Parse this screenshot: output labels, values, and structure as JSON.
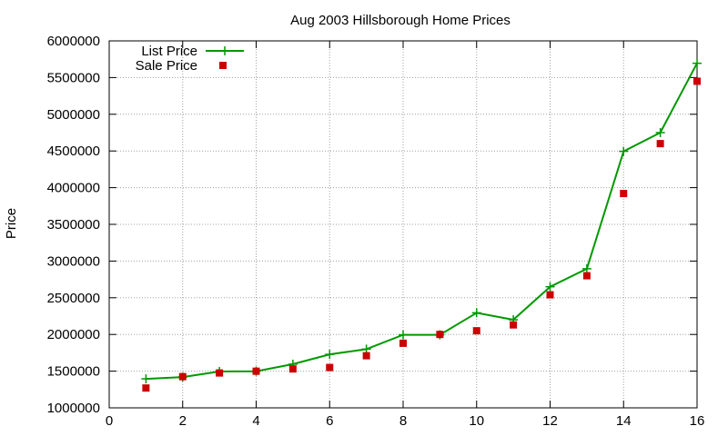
{
  "chart_data": {
    "type": "line",
    "title": "Aug 2003 Hillsborough Home Prices",
    "xlabel": "",
    "ylabel": "Price",
    "xlim": [
      0,
      16
    ],
    "ylim": [
      1000000,
      6000000
    ],
    "x_ticks": [
      "0",
      "2",
      "4",
      "6",
      "8",
      "10",
      "12",
      "14",
      "16"
    ],
    "y_ticks": [
      "1000000",
      "1500000",
      "2000000",
      "2500000",
      "3000000",
      "3500000",
      "4000000",
      "4500000",
      "5000000",
      "5500000",
      "6000000"
    ],
    "grid": true,
    "legend_position": "top-left",
    "series": [
      {
        "name": "List Price",
        "style": "line+cross",
        "color": "#009900",
        "x": [
          1,
          2,
          3,
          4,
          5,
          6,
          7,
          8,
          9,
          10,
          11,
          12,
          13,
          14,
          15,
          16
        ],
        "y": [
          1395000,
          1420000,
          1495000,
          1499000,
          1595000,
          1729000,
          1800000,
          1995000,
          1995000,
          2295000,
          2200000,
          2650000,
          2895000,
          4495000,
          4750000,
          5695000
        ]
      },
      {
        "name": "Sale Price",
        "style": "square",
        "color": "#cc0000",
        "x": [
          1,
          2,
          3,
          4,
          5,
          6,
          7,
          8,
          9,
          10,
          11,
          12,
          13,
          14,
          15,
          16
        ],
        "y": [
          1270000,
          1425000,
          1475000,
          1499000,
          1530000,
          1550000,
          1710000,
          1880000,
          2000000,
          2050000,
          2130000,
          2540000,
          2800000,
          3920000,
          4600000,
          5450000
        ]
      }
    ]
  }
}
